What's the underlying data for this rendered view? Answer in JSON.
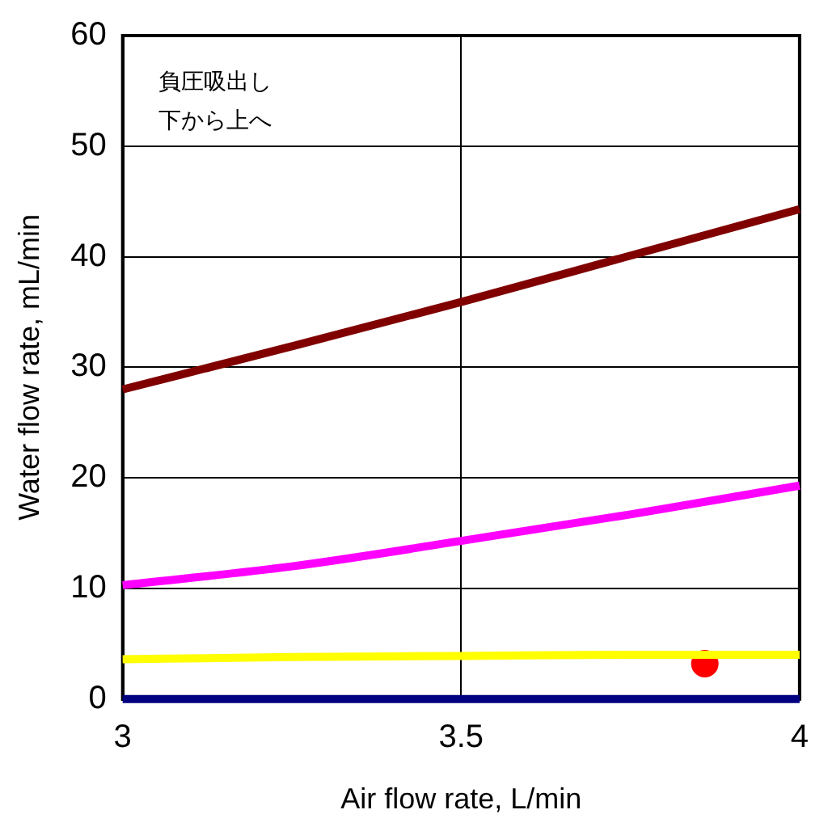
{
  "chart_data": {
    "type": "line",
    "xlabel": "Air flow rate, L/min",
    "ylabel": "Water flow rate, mL/min",
    "xlim": [
      3,
      4
    ],
    "xticks": [
      3,
      3.5,
      4
    ],
    "ylim": [
      0,
      60
    ],
    "yticks": [
      0,
      10,
      20,
      30,
      40,
      50,
      60
    ],
    "grid": true,
    "legend": false,
    "marker": "none",
    "line_style": "solid",
    "x": [
      3,
      3.25,
      3.5,
      3.75,
      4
    ],
    "annotations": [
      "負圧吸出し",
      "下から上へ"
    ],
    "series": [
      {
        "color": "#800000",
        "values": [
          28,
          31.9,
          35.9,
          40.1,
          44.3
        ]
      },
      {
        "color": "#ff00ff",
        "values": [
          10.3,
          12,
          14.3,
          16.7,
          19.3
        ]
      },
      {
        "color": "#ffff00",
        "values": [
          3.6,
          3.8,
          3.9,
          4,
          4
        ]
      },
      {
        "color": "#000080",
        "values": [
          0,
          0,
          0,
          0,
          0
        ]
      },
      {
        "type": "scatter",
        "color": "#ff0000",
        "marker": "circle",
        "x": [
          3.86
        ],
        "values": [
          3.2
        ]
      }
    ]
  }
}
